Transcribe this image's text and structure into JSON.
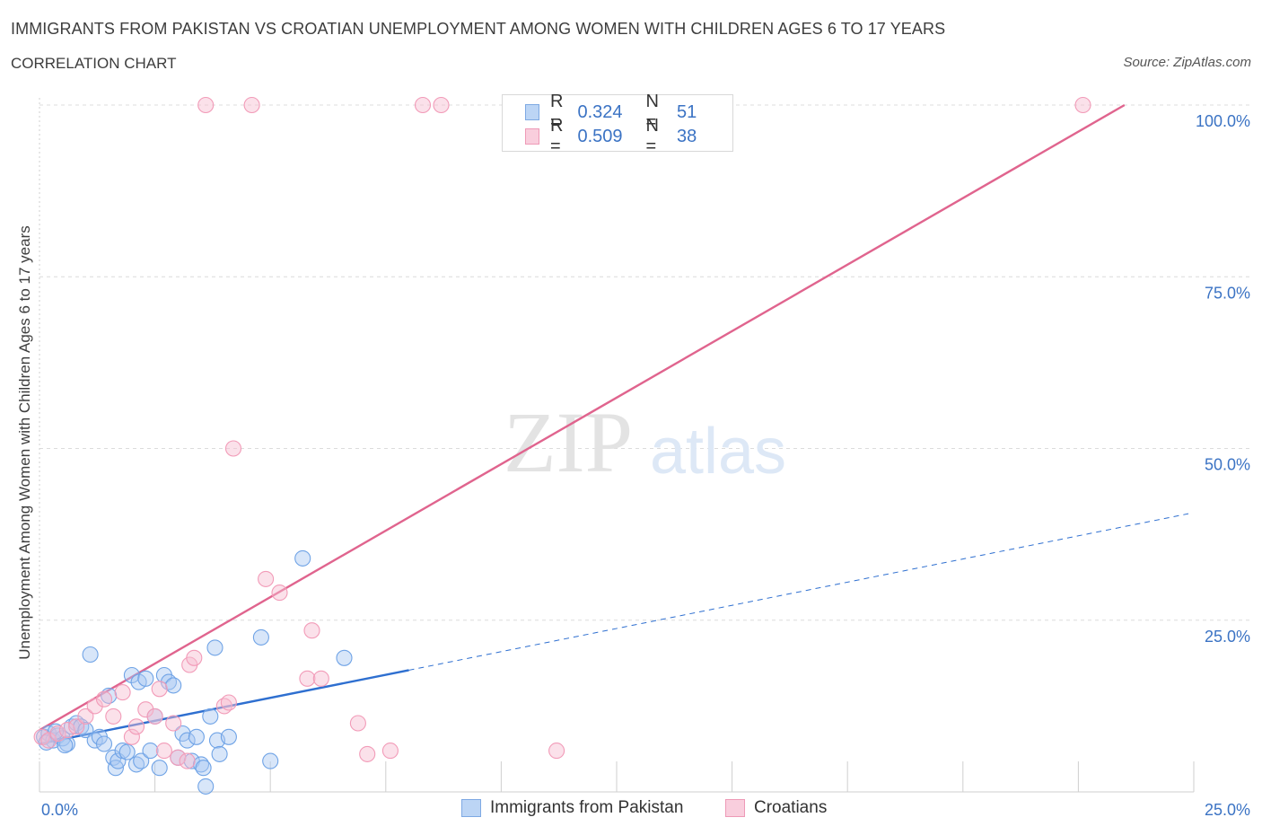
{
  "header": {
    "title": "IMMIGRANTS FROM PAKISTAN VS CROATIAN UNEMPLOYMENT AMONG WOMEN WITH CHILDREN AGES 6 TO 17 YEARS",
    "subtitle": "CORRELATION CHART",
    "source": "Source: ZipAtlas.com"
  },
  "watermark": {
    "zip": "ZIP",
    "atlas": "atlas"
  },
  "legend": {
    "rows": [
      {
        "r_label": "R =",
        "r_value": "0.324",
        "n_label": "N =",
        "n_value": "51",
        "color": "#a9c8f2"
      },
      {
        "r_label": "R =",
        "r_value": "0.509",
        "n_label": "N =",
        "n_value": "38",
        "color": "#f7bcd0"
      }
    ]
  },
  "bottom_legend": {
    "items": [
      {
        "label": "Immigrants from Pakistan",
        "color": "#a9c8f2"
      },
      {
        "label": "Croatians",
        "color": "#f7bcd0"
      }
    ]
  },
  "chart_data": {
    "type": "scatter",
    "xlabel": "",
    "ylabel": "Unemployment Among Women with Children Ages 6 to 17 years",
    "xlim": [
      0,
      25
    ],
    "ylim": [
      0,
      100
    ],
    "x_tick_labels": [
      "0.0%",
      "25.0%"
    ],
    "y_tick_labels": [
      "100.0%",
      "75.0%",
      "50.0%",
      "25.0%"
    ],
    "y_ticks": [
      100,
      75,
      50,
      25
    ],
    "grid": true,
    "series": [
      {
        "name": "Immigrants from Pakistan",
        "color": "#6fa3e6",
        "line_color": "#2e6fd0",
        "trend": {
          "x0": 0,
          "y0": 7.0,
          "x1": 25,
          "y1": 40.5,
          "solid_until_x": 8.0
        },
        "points": [
          [
            0.1,
            8.0
          ],
          [
            0.2,
            8.5
          ],
          [
            0.3,
            7.5
          ],
          [
            0.4,
            8.2
          ],
          [
            0.5,
            7.8
          ],
          [
            0.6,
            7.0
          ],
          [
            0.7,
            9.5
          ],
          [
            0.8,
            10.0
          ],
          [
            0.9,
            9.5
          ],
          [
            1.0,
            9.0
          ],
          [
            1.1,
            20.0
          ],
          [
            1.2,
            7.5
          ],
          [
            1.3,
            8.0
          ],
          [
            1.4,
            7.0
          ],
          [
            1.5,
            14.0
          ],
          [
            1.6,
            5.0
          ],
          [
            1.65,
            3.5
          ],
          [
            1.7,
            4.5
          ],
          [
            1.8,
            6.0
          ],
          [
            1.9,
            5.8
          ],
          [
            2.0,
            17.0
          ],
          [
            2.1,
            4.0
          ],
          [
            2.15,
            16.0
          ],
          [
            2.2,
            4.5
          ],
          [
            2.3,
            16.5
          ],
          [
            2.4,
            6.0
          ],
          [
            2.5,
            11.0
          ],
          [
            2.6,
            3.5
          ],
          [
            2.7,
            17.0
          ],
          [
            2.8,
            16.0
          ],
          [
            2.9,
            15.5
          ],
          [
            3.0,
            5.0
          ],
          [
            3.1,
            8.5
          ],
          [
            3.2,
            7.5
          ],
          [
            3.3,
            4.5
          ],
          [
            3.4,
            8.0
          ],
          [
            3.5,
            4.0
          ],
          [
            3.55,
            3.5
          ],
          [
            3.6,
            0.8
          ],
          [
            3.7,
            11.0
          ],
          [
            3.8,
            21.0
          ],
          [
            3.85,
            7.5
          ],
          [
            3.9,
            5.5
          ],
          [
            4.1,
            8.0
          ],
          [
            4.8,
            22.5
          ],
          [
            5.0,
            4.5
          ],
          [
            5.7,
            34.0
          ],
          [
            6.6,
            19.5
          ],
          [
            0.15,
            7.2
          ],
          [
            0.35,
            8.8
          ],
          [
            0.55,
            6.8
          ]
        ]
      },
      {
        "name": "Croatians",
        "color": "#f29bb8",
        "line_color": "#e0648e",
        "trend": {
          "x0": 0,
          "y0": 9.0,
          "x1": 23.5,
          "y1": 100.0,
          "solid_until_x": 23.5
        },
        "points": [
          [
            0.05,
            8.0
          ],
          [
            0.2,
            7.5
          ],
          [
            0.4,
            8.5
          ],
          [
            0.6,
            9.0
          ],
          [
            0.8,
            9.5
          ],
          [
            1.0,
            11.0
          ],
          [
            1.2,
            12.5
          ],
          [
            1.4,
            13.5
          ],
          [
            1.6,
            11.0
          ],
          [
            1.8,
            14.5
          ],
          [
            2.0,
            8.0
          ],
          [
            2.1,
            9.5
          ],
          [
            2.3,
            12.0
          ],
          [
            2.5,
            11.0
          ],
          [
            2.6,
            15.0
          ],
          [
            2.7,
            6.0
          ],
          [
            2.9,
            10.0
          ],
          [
            3.0,
            5.0
          ],
          [
            3.2,
            4.5
          ],
          [
            3.25,
            18.5
          ],
          [
            3.35,
            19.5
          ],
          [
            3.6,
            100.0
          ],
          [
            4.0,
            12.5
          ],
          [
            4.1,
            13.0
          ],
          [
            4.2,
            50.0
          ],
          [
            4.6,
            100.0
          ],
          [
            4.9,
            31.0
          ],
          [
            5.2,
            29.0
          ],
          [
            5.8,
            16.5
          ],
          [
            5.9,
            23.5
          ],
          [
            6.1,
            16.5
          ],
          [
            6.9,
            10.0
          ],
          [
            7.1,
            5.5
          ],
          [
            7.6,
            6.0
          ],
          [
            8.3,
            100.0
          ],
          [
            8.7,
            100.0
          ],
          [
            11.2,
            6.0
          ],
          [
            22.6,
            100.0
          ]
        ]
      }
    ]
  }
}
